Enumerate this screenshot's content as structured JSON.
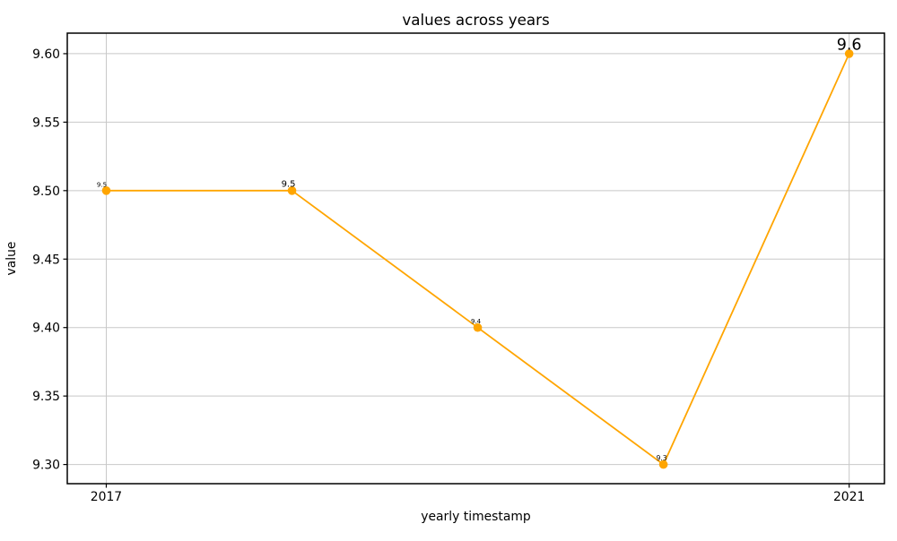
{
  "chart_data": {
    "type": "line",
    "title": "values across years",
    "xlabel": "yearly timestamp",
    "ylabel": "value",
    "x": [
      2017,
      2018,
      2019,
      2020,
      2021
    ],
    "values": [
      9.5,
      9.5,
      9.4,
      9.3,
      9.6
    ],
    "series": [
      {
        "name": "value",
        "values": [
          9.5,
          9.5,
          9.4,
          9.3,
          9.6
        ]
      }
    ],
    "point_labels": [
      {
        "text": "9.5",
        "size": 7,
        "dx": -5
      },
      {
        "text": "9.5",
        "size": 10,
        "dx": -4
      },
      {
        "text": "9.4",
        "size": 7,
        "dx": -2
      },
      {
        "text": "9.3",
        "size": 7.5,
        "dx": -2
      },
      {
        "text": "9.6",
        "size": 17.5,
        "dx": 0
      }
    ],
    "xticks": [
      {
        "value": 2017,
        "label": "2017"
      },
      {
        "value": 2021,
        "label": "2021"
      }
    ],
    "yticks": [
      {
        "value": 9.3,
        "label": "9.30"
      },
      {
        "value": 9.35,
        "label": "9.35"
      },
      {
        "value": 9.4,
        "label": "9.40"
      },
      {
        "value": 9.45,
        "label": "9.45"
      },
      {
        "value": 9.5,
        "label": "9.50"
      },
      {
        "value": 9.55,
        "label": "9.55"
      },
      {
        "value": 9.6,
        "label": "9.60"
      }
    ],
    "xlim": [
      2016.79,
      2021.19
    ],
    "ylim": [
      9.286,
      9.615
    ],
    "grid": true,
    "legend": "none",
    "colors": {
      "line": "#FFA500",
      "marker": "#FFA500",
      "grid": "#c8c8c8",
      "axis": "#000000",
      "text": "#000000"
    }
  }
}
